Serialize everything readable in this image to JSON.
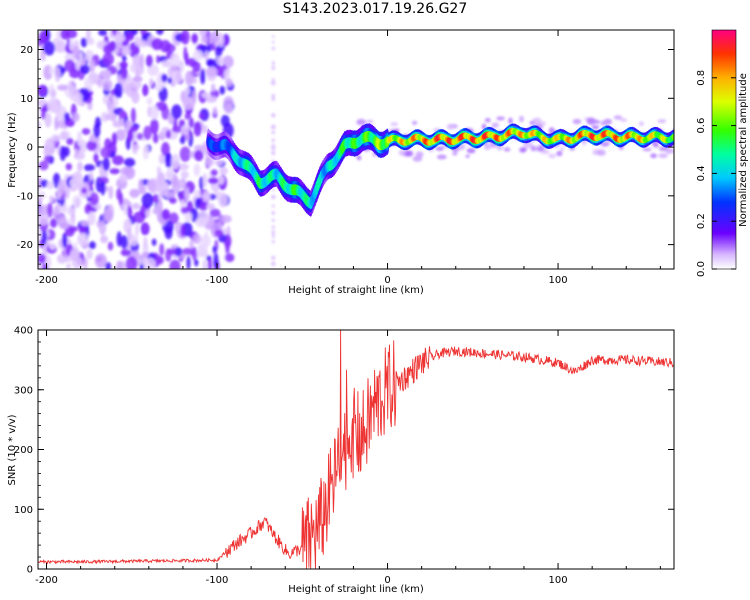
{
  "title": "S143.2023.017.19.26.G27",
  "chart_data": [
    {
      "type": "heatmap",
      "title": "S143.2023.017.19.26.G27",
      "xlabel": "Height of straight line (km)",
      "ylabel": "Frequency (Hz)",
      "xlim": [
        -205,
        168
      ],
      "ylim": [
        -25,
        24
      ],
      "xticks": [
        -200,
        -100,
        0,
        100
      ],
      "yticks": [
        -20,
        -10,
        0,
        10,
        20
      ],
      "colorbar": {
        "label": "Normalized spectral amplitude",
        "range": [
          0,
          1
        ],
        "ticks": [
          0.0,
          0.2,
          0.4,
          0.6,
          0.8
        ]
      },
      "features": {
        "noise_region_x": [
          -205,
          -100
        ],
        "signal_band": {
          "x": [
            -105,
            -95,
            -85,
            -75,
            -65,
            -55,
            -45,
            -35,
            -25,
            -15,
            -5,
            10,
            30,
            60,
            80,
            90,
            100,
            120,
            140,
            168
          ],
          "frequency": [
            1,
            0,
            -3,
            -7,
            -6,
            -9,
            -11,
            -4,
            0,
            2,
            1,
            1.5,
            1.5,
            2,
            3,
            2,
            1.5,
            2.5,
            2,
            2
          ],
          "amplitude": [
            0.3,
            0.35,
            0.5,
            0.55,
            0.5,
            0.6,
            0.5,
            0.45,
            0.6,
            0.6,
            0.7,
            0.85,
            0.95,
            0.95,
            0.85,
            0.8,
            0.8,
            0.95,
            0.9,
            0.7
          ]
        }
      }
    },
    {
      "type": "line",
      "xlabel": "Height of straight line (km)",
      "ylabel": "SNR (10 * v/v)",
      "xlim": [
        -205,
        168
      ],
      "ylim": [
        0,
        400
      ],
      "xticks": [
        -200,
        -100,
        0,
        100
      ],
      "yticks": [
        0,
        100,
        200,
        300,
        400
      ],
      "color": "#ee3333",
      "series": [
        {
          "name": "SNR",
          "x": [
            -205,
            -180,
            -150,
            -120,
            -100,
            -90,
            -80,
            -72,
            -65,
            -58,
            -50,
            -40,
            -30,
            -22,
            -15,
            -8,
            0,
            10,
            20,
            30,
            40,
            60,
            80,
            100,
            110,
            120,
            140,
            168
          ],
          "y": [
            12,
            12,
            13,
            14,
            15,
            40,
            60,
            80,
            50,
            25,
            35,
            70,
            160,
            230,
            220,
            270,
            300,
            320,
            345,
            360,
            365,
            360,
            355,
            345,
            330,
            350,
            350,
            345
          ]
        }
      ]
    }
  ]
}
